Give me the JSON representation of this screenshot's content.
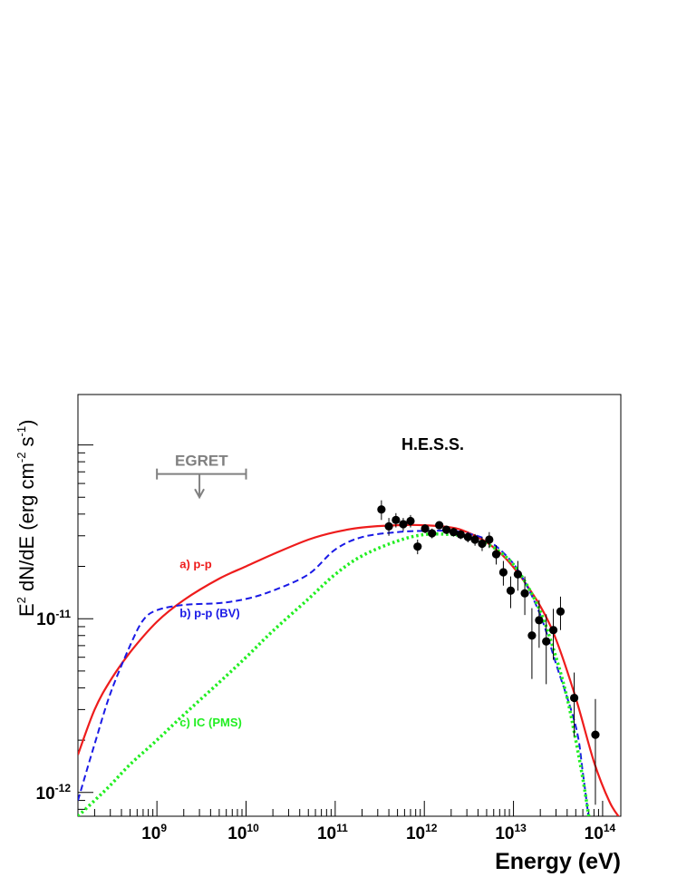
{
  "chart_data": {
    "type": "scatter",
    "title": "",
    "xlabel": "Energy (eV)",
    "ylabel": {
      "base": "E",
      "sup1": "2",
      "mid": " dN/dE (erg cm",
      "sup2": "-2",
      "mid2": " s",
      "sup3": "-1",
      "end": ")"
    },
    "x_scale": "log",
    "y_scale": "log",
    "xlim": [
      130000000.0,
      160000000000000.0
    ],
    "ylim": [
      7.3e-13,
      1.95e-10
    ],
    "x_ticks": [
      {
        "value": 1000000000.0,
        "base": "10",
        "exp": "9"
      },
      {
        "value": 10000000000.0,
        "base": "10",
        "exp": "10"
      },
      {
        "value": 100000000000.0,
        "base": "10",
        "exp": "11"
      },
      {
        "value": 1000000000000.0,
        "base": "10",
        "exp": "12"
      },
      {
        "value": 10000000000000.0,
        "base": "10",
        "exp": "13"
      },
      {
        "value": 100000000000000.0,
        "base": "10",
        "exp": "14"
      }
    ],
    "y_ticks": [
      {
        "value": 1e-12,
        "base": "10",
        "exp": "-12"
      },
      {
        "value": 1e-11,
        "base": "10",
        "exp": "-11"
      }
    ],
    "grid": false,
    "legend": "none",
    "hess_label": "H.E.S.S.",
    "egret": {
      "label": "EGRET",
      "color": "#808080",
      "x_range": [
        1000000000.0,
        10000000000.0
      ],
      "y": 6.8e-11,
      "arrow_x": 3000000000.0,
      "arrow_to_y": 5e-11
    },
    "hess_points": [
      {
        "x": 330000000000.0,
        "y": 4.25e-11,
        "yerr_lo": 5.5e-12,
        "yerr_hi": 5.5e-12
      },
      {
        "x": 400000000000.0,
        "y": 3.4e-11,
        "yerr_lo": 4e-12,
        "yerr_hi": 4e-12
      },
      {
        "x": 480000000000.0,
        "y": 3.7e-11,
        "yerr_lo": 3.5e-12,
        "yerr_hi": 3.5e-12
      },
      {
        "x": 580000000000.0,
        "y": 3.5e-11,
        "yerr_lo": 3e-12,
        "yerr_hi": 3e-12
      },
      {
        "x": 700000000000.0,
        "y": 3.65e-11,
        "yerr_lo": 3e-12,
        "yerr_hi": 3e-12
      },
      {
        "x": 840000000000.0,
        "y": 2.6e-11,
        "yerr_lo": 2.5e-12,
        "yerr_hi": 2.5e-12
      },
      {
        "x": 1020000000000.0,
        "y": 3.3e-11,
        "yerr_lo": 2e-12,
        "yerr_hi": 2e-12
      },
      {
        "x": 1220000000000.0,
        "y": 3.1e-11,
        "yerr_lo": 2e-12,
        "yerr_hi": 2e-12
      },
      {
        "x": 1470000000000.0,
        "y": 3.45e-11,
        "yerr_lo": 1.8e-12,
        "yerr_hi": 1.8e-12
      },
      {
        "x": 1770000000000.0,
        "y": 3.25e-11,
        "yerr_lo": 1.8e-12,
        "yerr_hi": 1.8e-12
      },
      {
        "x": 2130000000000.0,
        "y": 3.15e-11,
        "yerr_lo": 1.8e-12,
        "yerr_hi": 1.8e-12
      },
      {
        "x": 2560000000000.0,
        "y": 3.05e-11,
        "yerr_lo": 1.8e-12,
        "yerr_hi": 1.8e-12
      },
      {
        "x": 3080000000000.0,
        "y": 2.95e-11,
        "yerr_lo": 2e-12,
        "yerr_hi": 2e-12
      },
      {
        "x": 3700000000000.0,
        "y": 2.85e-11,
        "yerr_lo": 2.2e-12,
        "yerr_hi": 2.2e-12
      },
      {
        "x": 4450000000000.0,
        "y": 2.7e-11,
        "yerr_lo": 2.5e-12,
        "yerr_hi": 2.5e-12
      },
      {
        "x": 5350000000000.0,
        "y": 2.85e-11,
        "yerr_lo": 3e-12,
        "yerr_hi": 3e-12
      },
      {
        "x": 6400000000000.0,
        "y": 2.35e-11,
        "yerr_lo": 3e-12,
        "yerr_hi": 3e-12
      },
      {
        "x": 7700000000000.0,
        "y": 1.85e-11,
        "yerr_lo": 3e-12,
        "yerr_hi": 3e-12
      },
      {
        "x": 9300000000000.0,
        "y": 1.45e-11,
        "yerr_lo": 3e-12,
        "yerr_hi": 3e-12
      },
      {
        "x": 11200000000000.0,
        "y": 1.8e-11,
        "yerr_lo": 3.5e-12,
        "yerr_hi": 3.5e-12
      },
      {
        "x": 13400000000000.0,
        "y": 1.4e-11,
        "yerr_lo": 3.5e-12,
        "yerr_hi": 3.5e-12
      },
      {
        "x": 16100000000000.0,
        "y": 8e-12,
        "yerr_lo": 3.5e-12,
        "yerr_hi": 3.5e-12
      },
      {
        "x": 19400000000000.0,
        "y": 9.8e-12,
        "yerr_lo": 3e-12,
        "yerr_hi": 3e-12
      },
      {
        "x": 23300000000000.0,
        "y": 7.4e-12,
        "yerr_lo": 3.2e-12,
        "yerr_hi": 3.2e-12
      },
      {
        "x": 28000000000000.0,
        "y": 8.6e-12,
        "yerr_lo": 2.8e-12,
        "yerr_hi": 2.8e-12
      },
      {
        "x": 33700000000000.0,
        "y": 1.1e-11,
        "yerr_lo": 2.4e-12,
        "yerr_hi": 2.4e-12
      },
      {
        "x": 48000000000000.0,
        "y": 3.5e-12,
        "yerr_lo": 1.4e-12,
        "yerr_hi": 1.4e-12
      },
      {
        "x": 83000000000000.0,
        "y": 2.15e-12,
        "yerr_lo": 1.3e-12,
        "yerr_hi": 1.3e-12
      }
    ],
    "series": [
      {
        "name": "a) p-p",
        "color": "#ee1c1c",
        "style": "solid",
        "label_at": {
          "x": 1800000000.0,
          "y": 1.95e-11
        },
        "x": [
          130000000.0,
          200000000.0,
          300000000.0,
          500000000.0,
          1000000000.0,
          2000000000.0,
          5000000000.0,
          10000000000.0,
          20000000000.0,
          50000000000.0,
          100000000000.0,
          200000000000.0,
          500000000000.0,
          1000000000000.0,
          2000000000000.0,
          3000000000000.0,
          5000000000000.0,
          8000000000000.0,
          12000000000000.0,
          20000000000000.0,
          30000000000000.0,
          50000000000000.0,
          80000000000000.0,
          120000000000000.0,
          160000000000000.0
        ],
        "y": [
          1.65e-12,
          3e-12,
          4.4e-12,
          6.4e-12,
          9.6e-12,
          1.28e-11,
          1.7e-11,
          2e-11,
          2.35e-11,
          2.85e-11,
          3.15e-11,
          3.35e-11,
          3.45e-11,
          3.45e-11,
          3.35e-11,
          3.15e-11,
          2.75e-11,
          2.25e-11,
          1.75e-11,
          1.18e-11,
          7.6e-12,
          3.5e-12,
          1.5e-12,
          8.8e-13,
          7e-13
        ]
      },
      {
        "name": "b) p-p (BV)",
        "color": "#1a1ae6",
        "style": "dashed",
        "label_at": {
          "x": 1800000000.0,
          "y": 1.02e-11
        },
        "x": [
          130000000.0,
          200000000.0,
          300000000.0,
          500000000.0,
          700000000.0,
          1000000000.0,
          2000000000.0,
          5000000000.0,
          10000000000.0,
          20000000000.0,
          50000000000.0,
          100000000000.0,
          200000000000.0,
          500000000000.0,
          1000000000000.0,
          2000000000000.0,
          3000000000000.0,
          5000000000000.0,
          8000000000000.0,
          12000000000000.0,
          20000000000000.0,
          30000000000000.0,
          50000000000000.0,
          60000000000000.0,
          70000000000000.0
        ],
        "y": [
          9e-13,
          1.9e-12,
          3.7e-12,
          7e-12,
          9.8e-12,
          1.12e-11,
          1.2e-11,
          1.23e-11,
          1.3e-11,
          1.45e-11,
          1.8e-11,
          2.5e-11,
          2.95e-11,
          3.15e-11,
          3.2e-11,
          3.2e-11,
          3.1e-11,
          2.85e-11,
          2.35e-11,
          1.8e-11,
          1.05e-11,
          5.5e-12,
          2.4e-12,
          1.3e-12,
          7e-13
        ]
      },
      {
        "name": "c) IC (PMS)",
        "color": "#22ee22",
        "style": "dotted",
        "label_at": {
          "x": 1800000000.0,
          "y": 2.4e-12
        },
        "x": [
          130000000.0,
          200000000.0,
          300000000.0,
          500000000.0,
          1000000000.0,
          2000000000.0,
          5000000000.0,
          10000000000.0,
          20000000000.0,
          50000000000.0,
          100000000000.0,
          200000000000.0,
          500000000000.0,
          1000000000000.0,
          2000000000000.0,
          3000000000000.0,
          5000000000000.0,
          8000000000000.0,
          12000000000000.0,
          20000000000000.0,
          30000000000000.0,
          40000000000000.0,
          50000000000000.0,
          60000000000000.0,
          70000000000000.0
        ],
        "y": [
          7.3e-13,
          9e-13,
          1.1e-12,
          1.45e-12,
          2e-12,
          2.8e-12,
          4.3e-12,
          6e-12,
          8.5e-12,
          1.3e-11,
          1.8e-11,
          2.3e-11,
          2.8e-11,
          3.05e-11,
          3.05e-11,
          2.95e-11,
          2.7e-11,
          2.3e-11,
          1.8e-11,
          1.1e-11,
          6e-12,
          3.5e-12,
          2e-12,
          1.2e-12,
          7.3e-13
        ]
      }
    ]
  }
}
